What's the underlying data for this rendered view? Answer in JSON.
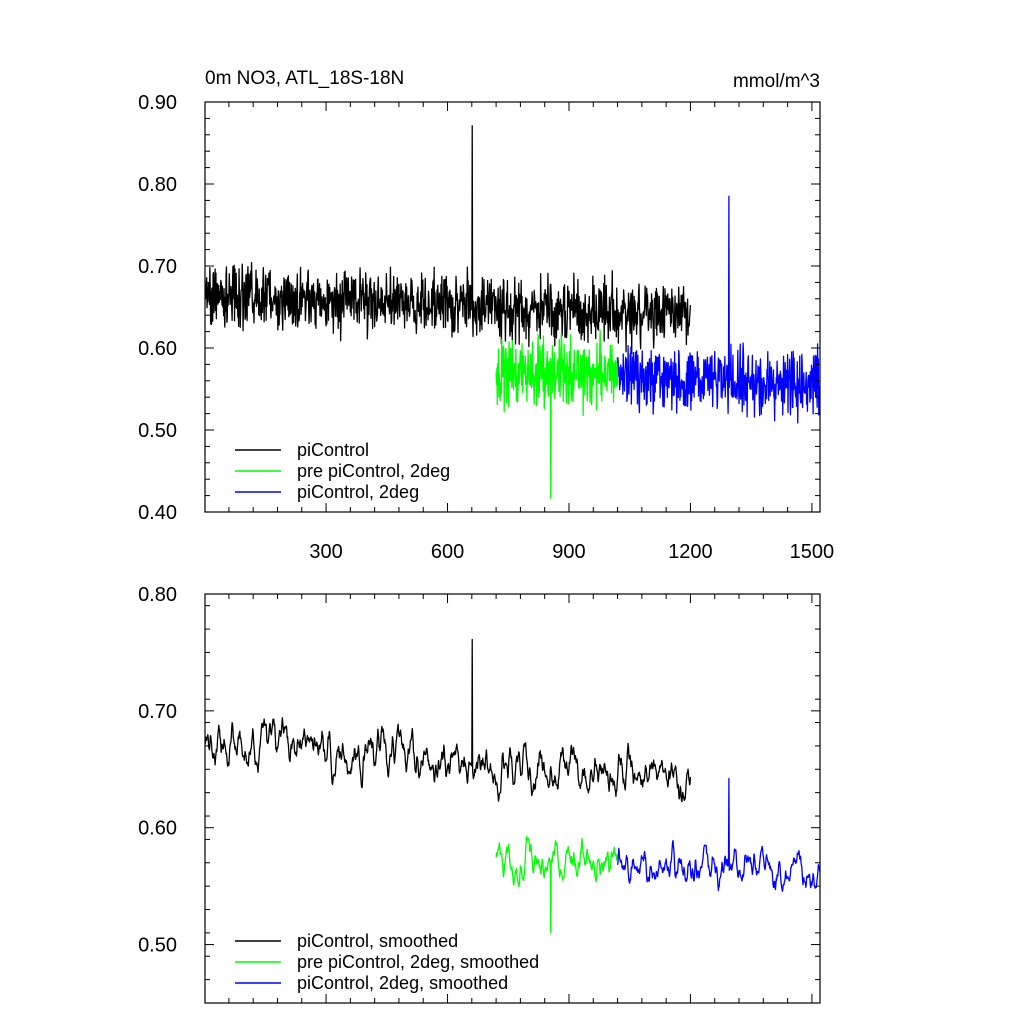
{
  "chart_data": [
    {
      "type": "line",
      "title": "0m NO3, ATL_18S-18N",
      "units": "mmol/m^3",
      "xlim": [
        1,
        1520
      ],
      "ylim": [
        0.4,
        0.9
      ],
      "xticks": [
        300,
        600,
        900,
        1200,
        1500
      ],
      "xtick_labels": [
        "300",
        "600",
        "900",
        "1200",
        "1500"
      ],
      "yticks": [
        0.4,
        0.5,
        0.6,
        0.7,
        0.8,
        0.9
      ],
      "ytick_labels": [
        "0.40",
        "0.50",
        "0.60",
        "0.70",
        "0.80",
        "0.90"
      ],
      "grid": false,
      "legend_position": "bottom-left",
      "series": [
        {
          "name": "piControl",
          "color": "#000000",
          "x_range": [
            1,
            1200
          ],
          "mean": 0.665,
          "mean_end": 0.64,
          "spread": 0.055,
          "peak": 0.871
        },
        {
          "name": "pre piControl, 2deg",
          "color": "#00ff00",
          "x_range": [
            720,
            1020
          ],
          "mean": 0.57,
          "mean_end": 0.57,
          "spread": 0.06,
          "min": 0.417
        },
        {
          "name": "piControl, 2deg",
          "color": "#0000ff",
          "x_range": [
            1020,
            1520
          ],
          "mean": 0.565,
          "mean_end": 0.555,
          "spread": 0.055,
          "peak": 0.785
        }
      ]
    },
    {
      "type": "line",
      "xlim": [
        1,
        1520
      ],
      "ylim": [
        0.45,
        0.8
      ],
      "xticks": [
        300,
        600,
        900,
        1200,
        1500
      ],
      "yticks": [
        0.5,
        0.6,
        0.7,
        0.8
      ],
      "ytick_labels": [
        "0.50",
        "0.60",
        "0.70",
        "0.80"
      ],
      "grid": false,
      "legend_position": "bottom-left",
      "series": [
        {
          "name": "piControl, smoothed",
          "color": "#000000",
          "x_range": [
            1,
            1200
          ],
          "mean": 0.675,
          "mean_end": 0.64,
          "spread": 0.025,
          "peak": 0.761
        },
        {
          "name": "pre piControl, 2deg, smoothed",
          "color": "#00ff00",
          "x_range": [
            720,
            1020
          ],
          "mean": 0.57,
          "mean_end": 0.57,
          "spread": 0.022,
          "min": 0.51
        },
        {
          "name": "piControl, 2deg, smoothed",
          "color": "#0000ff",
          "x_range": [
            1020,
            1520
          ],
          "mean": 0.568,
          "mean_end": 0.56,
          "spread": 0.022,
          "peak": 0.642
        }
      ]
    }
  ]
}
